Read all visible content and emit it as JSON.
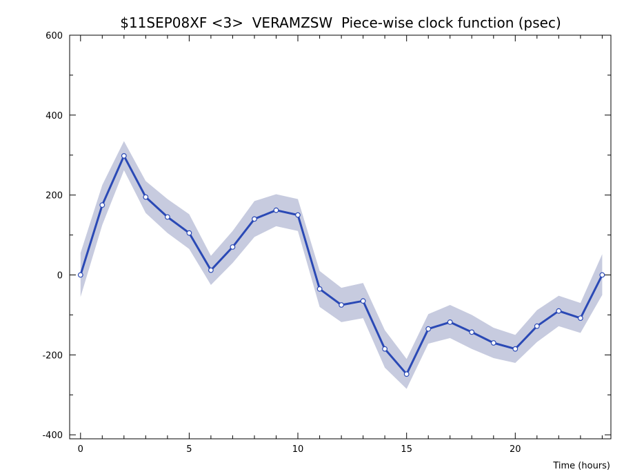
{
  "chart_data": {
    "type": "line",
    "title": "$11SEP08XF <3>  VERAMZSW  Piece-wise clock function (psec)",
    "xlabel": "Time (hours)",
    "ylabel": "",
    "xlim": [
      -0.5,
      24.4
    ],
    "ylim": [
      -410,
      600
    ],
    "x_ticks": [
      0,
      5,
      10,
      15,
      20
    ],
    "x_tick_labels": [
      "0",
      "5",
      "10",
      "15",
      "20"
    ],
    "x_minor_step": 1,
    "y_ticks": [
      -400,
      -200,
      0,
      200,
      400,
      600
    ],
    "y_tick_labels": [
      "-400",
      "-200",
      "0",
      "200",
      "400",
      "600"
    ],
    "y_minor_step": 100,
    "grid": false,
    "series": [
      {
        "x": [
          0,
          1,
          2,
          3,
          4,
          5,
          6,
          7,
          8,
          9,
          10,
          11,
          12,
          13,
          14,
          15,
          16,
          17,
          18,
          19,
          20,
          21,
          22,
          23,
          24
        ],
        "values": [
          0,
          175,
          298,
          195,
          145,
          105,
          12,
          70,
          140,
          162,
          150,
          -35,
          -75,
          -65,
          -185,
          -248,
          -135,
          -118,
          -143,
          -170,
          -185,
          -128,
          -90,
          -108,
          0
        ],
        "band_lower": [
          -55,
          125,
          262,
          155,
          105,
          65,
          -25,
          30,
          95,
          122,
          110,
          -80,
          -118,
          -108,
          -232,
          -285,
          -172,
          -158,
          -185,
          -208,
          -220,
          -168,
          -128,
          -145,
          -50
        ],
        "band_upper": [
          55,
          225,
          335,
          235,
          190,
          152,
          48,
          110,
          185,
          202,
          190,
          10,
          -32,
          -20,
          -138,
          -210,
          -98,
          -75,
          -100,
          -132,
          -150,
          -88,
          -52,
          -70,
          52
        ],
        "line_color": "#2a49b5",
        "band_color": "#c7cbdf"
      }
    ]
  }
}
